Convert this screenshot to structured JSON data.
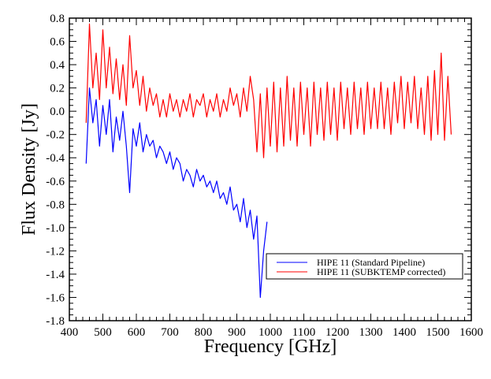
{
  "chart_data": {
    "type": "line",
    "title": "",
    "xlabel": "Frequency [GHz]",
    "ylabel": "Flux Density [Jy]",
    "xlim": [
      400,
      1600
    ],
    "ylim": [
      -1.8,
      0.8
    ],
    "x_ticks": [
      "400",
      "500",
      "600",
      "700",
      "800",
      "900",
      "1000",
      "1100",
      "1200",
      "1300",
      "1400",
      "1500",
      "1600"
    ],
    "y_ticks": [
      "0.8",
      "0.6",
      "0.4",
      "0.2",
      "0.0",
      "-0.2",
      "-0.4",
      "-0.6",
      "-0.8",
      "-1.0",
      "-1.2",
      "-1.4",
      "-1.6",
      "-1.8"
    ],
    "grid": false,
    "legend_position": "lower-right",
    "series": [
      {
        "name": "HIPE 11 (Standard Pipeline)",
        "color": "#0000ff",
        "x_start": 450,
        "x_step": 10,
        "values": [
          -0.45,
          0.2,
          -0.1,
          0.1,
          -0.3,
          0.05,
          -0.2,
          0.1,
          -0.35,
          -0.05,
          -0.25,
          0.0,
          -0.3,
          -0.7,
          -0.15,
          -0.3,
          -0.1,
          -0.35,
          -0.2,
          -0.3,
          -0.25,
          -0.4,
          -0.3,
          -0.35,
          -0.45,
          -0.35,
          -0.5,
          -0.4,
          -0.45,
          -0.6,
          -0.5,
          -0.55,
          -0.65,
          -0.5,
          -0.6,
          -0.55,
          -0.65,
          -0.6,
          -0.7,
          -0.6,
          -0.75,
          -0.7,
          -0.8,
          -0.65,
          -0.85,
          -0.8,
          -0.95,
          -0.75,
          -1.0,
          -0.85,
          -1.1,
          -0.9,
          -1.6,
          -1.2,
          -0.95
        ]
      },
      {
        "name": "HIPE 11 (SUBKTEMP corrected)",
        "color": "#ff0000",
        "x_start": 450,
        "x_step": 10,
        "values": [
          -0.1,
          0.75,
          0.2,
          0.5,
          0.1,
          0.7,
          0.2,
          0.55,
          0.15,
          0.45,
          0.1,
          0.4,
          0.05,
          0.65,
          0.2,
          0.35,
          0.05,
          0.3,
          0.0,
          0.2,
          0.05,
          0.15,
          -0.05,
          0.1,
          -0.05,
          0.15,
          0.0,
          0.1,
          -0.05,
          0.1,
          0.0,
          0.15,
          -0.05,
          0.1,
          0.05,
          0.15,
          -0.05,
          0.1,
          0.0,
          0.15,
          -0.05,
          0.1,
          0.0,
          0.2,
          0.05,
          0.15,
          -0.05,
          0.2,
          0.0,
          0.3,
          0.1,
          -0.35,
          0.15,
          -0.4,
          0.2,
          -0.3,
          0.25,
          -0.35,
          0.2,
          -0.3,
          0.3,
          -0.25,
          0.2,
          -0.3,
          0.25,
          -0.2,
          0.2,
          -0.3,
          0.25,
          -0.2,
          0.2,
          -0.25,
          0.25,
          -0.2,
          0.2,
          -0.25,
          0.25,
          -0.15,
          0.2,
          -0.2,
          0.25,
          -0.15,
          0.2,
          -0.2,
          0.25,
          -0.15,
          0.2,
          -0.15,
          0.25,
          -0.15,
          0.2,
          -0.2,
          0.25,
          -0.1,
          0.3,
          -0.15,
          0.25,
          -0.1,
          0.3,
          -0.15,
          0.2,
          -0.2,
          0.3,
          -0.25,
          0.35,
          -0.2,
          0.5,
          -0.25,
          0.3,
          -0.2
        ]
      }
    ]
  }
}
